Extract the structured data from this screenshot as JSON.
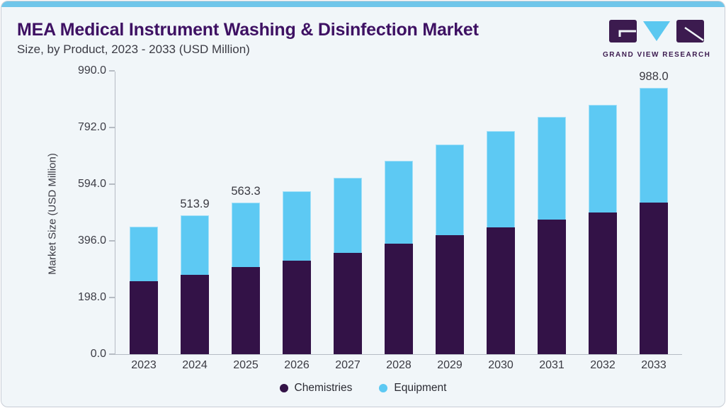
{
  "header": {
    "title": "MEA Medical Instrument Washing & Disinfection Market",
    "subtitle": "Size, by Product, 2023 - 2033 (USD Million)",
    "logo_text": "GRAND VIEW RESEARCH"
  },
  "chart_data": {
    "type": "bar",
    "stacked": true,
    "title": "MEA Medical Instrument Washing & Disinfection Market Size, by Product, 2023 - 2033 (USD Million)",
    "xlabel": "",
    "ylabel": "Market Size (USD Million)",
    "categories": [
      "2023",
      "2024",
      "2025",
      "2026",
      "2027",
      "2028",
      "2029",
      "2030",
      "2031",
      "2032",
      "2033"
    ],
    "series": [
      {
        "name": "Chemistries",
        "color": "#331247",
        "values": [
          271.2,
          293.8,
          323.8,
          346.4,
          375.3,
          409.5,
          442.8,
          471.7,
          498.8,
          525.1,
          562.9
        ]
      },
      {
        "name": "Equipment",
        "color": "#5dc9f3",
        "values": [
          203.2,
          220.1,
          239.5,
          258.6,
          280.4,
          308.5,
          335.7,
          357.5,
          380.4,
          400.6,
          425.1
        ]
      }
    ],
    "totals": [
      474.4,
      513.9,
      563.3,
      605.0,
      655.7,
      718.0,
      778.5,
      829.2,
      879.2,
      925.7,
      988.0
    ],
    "data_labels": {
      "2024": "513.9",
      "2025": "563.3",
      "2033": "988.0"
    },
    "y_ticks": [
      "0.0",
      "198.0",
      "396.0",
      "594.0",
      "792.0",
      "990.0"
    ],
    "ylim": [
      0,
      990
    ],
    "grid": false,
    "legend_position": "bottom"
  },
  "colors": {
    "accent_bar": "#70c6ea",
    "card_background": "#f1f6f9",
    "title": "#3e1163",
    "axis": "#b6bcc4",
    "chemistries": "#331247",
    "equipment": "#5dc9f3",
    "logo_purple": "#3c1b4f",
    "logo_blue": "#5bc8f0"
  }
}
